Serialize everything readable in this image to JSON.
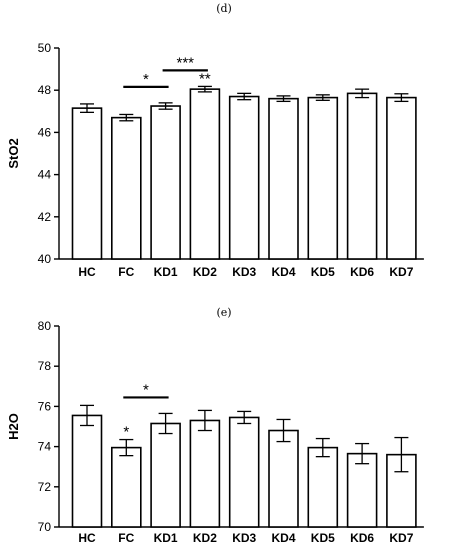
{
  "chart_data": [
    {
      "panel": "(d)",
      "type": "bar",
      "ylabel": "StO2",
      "xlabel": "",
      "ylim": [
        40,
        50
      ],
      "yticks": [
        40,
        42,
        44,
        46,
        48,
        50
      ],
      "categories": [
        "HC",
        "FC",
        "KD1",
        "KD2",
        "KD3",
        "KD4",
        "KD5",
        "KD6",
        "KD7"
      ],
      "values": [
        47.15,
        46.7,
        47.25,
        48.05,
        47.7,
        47.6,
        47.65,
        47.85,
        47.65
      ],
      "errors": [
        0.2,
        0.15,
        0.15,
        0.13,
        0.15,
        0.13,
        0.13,
        0.2,
        0.18
      ],
      "annotations": [
        {
          "type": "bracket",
          "from": "FC",
          "to": "KD1",
          "label": "*"
        },
        {
          "type": "bracket",
          "from": "KD1",
          "to": "KD2",
          "label": "***"
        },
        {
          "type": "bar",
          "category": "KD2",
          "label": "**"
        }
      ]
    },
    {
      "panel": "(e)",
      "type": "bar",
      "ylabel": "H2O",
      "xlabel": "",
      "ylim": [
        70,
        80
      ],
      "yticks": [
        70,
        72,
        74,
        76,
        78,
        80
      ],
      "categories": [
        "HC",
        "FC",
        "KD1",
        "KD2",
        "KD3",
        "KD4",
        "KD5",
        "KD6",
        "KD7"
      ],
      "values": [
        75.55,
        73.95,
        75.15,
        75.3,
        75.45,
        74.8,
        73.95,
        73.65,
        73.6
      ],
      "errors": [
        0.5,
        0.4,
        0.5,
        0.5,
        0.3,
        0.55,
        0.45,
        0.5,
        0.85
      ],
      "annotations": [
        {
          "type": "bracket",
          "from": "FC",
          "to": "KD1",
          "label": "*"
        },
        {
          "type": "bar",
          "category": "FC",
          "label": "*"
        }
      ]
    }
  ]
}
